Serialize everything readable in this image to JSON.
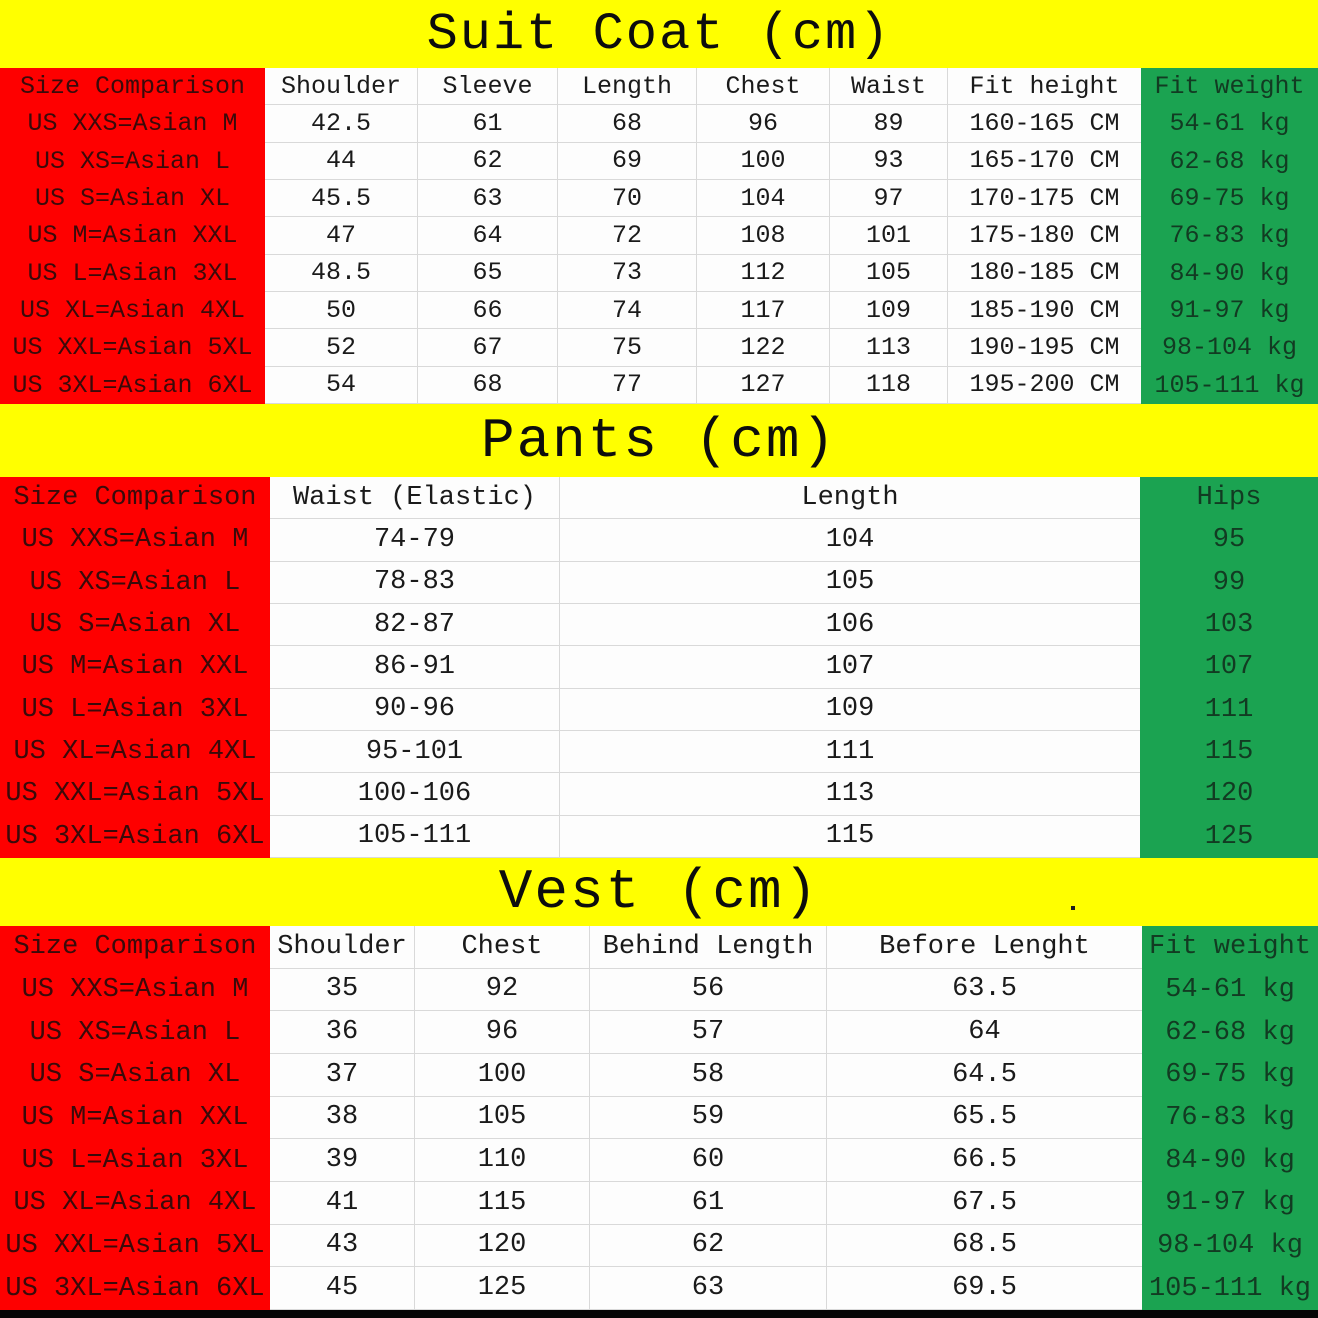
{
  "colors": {
    "banner": "#ffff00",
    "red": "#fe0000",
    "green": "#1ba351",
    "grid": "#d9d9d9",
    "cell_bg": "#fdfdfd",
    "footer": "#060606"
  },
  "tables": [
    {
      "title": "Suit Coat (cm)",
      "columns": [
        {
          "label": "Size Comparison",
          "type": "red"
        },
        {
          "label": "Shoulder",
          "type": "white"
        },
        {
          "label": "Sleeve",
          "type": "white"
        },
        {
          "label": "Length",
          "type": "white"
        },
        {
          "label": "Chest",
          "type": "white"
        },
        {
          "label": "Waist",
          "type": "white"
        },
        {
          "label": "Fit height",
          "type": "white"
        },
        {
          "label": "Fit weight",
          "type": "green"
        }
      ],
      "rows": [
        [
          "US XXS=Asian M",
          "42.5",
          "61",
          "68",
          "96",
          "89",
          "160-165 CM",
          "54-61 kg"
        ],
        [
          "US XS=Asian L",
          "44",
          "62",
          "69",
          "100",
          "93",
          "165-170 CM",
          "62-68 kg"
        ],
        [
          "US S=Asian XL",
          "45.5",
          "63",
          "70",
          "104",
          "97",
          "170-175 CM",
          "69-75 kg"
        ],
        [
          "US M=Asian XXL",
          "47",
          "64",
          "72",
          "108",
          "101",
          "175-180 CM",
          "76-83 kg"
        ],
        [
          "US L=Asian 3XL",
          "48.5",
          "65",
          "73",
          "112",
          "105",
          "180-185 CM",
          "84-90 kg"
        ],
        [
          "US XL=Asian 4XL",
          "50",
          "66",
          "74",
          "117",
          "109",
          "185-190 CM",
          "91-97 kg"
        ],
        [
          "US XXL=Asian 5XL",
          "52",
          "67",
          "75",
          "122",
          "113",
          "190-195 CM",
          "98-104 kg"
        ],
        [
          "US 3XL=Asian 6XL",
          "54",
          "68",
          "77",
          "127",
          "118",
          "195-200 CM",
          "105-111 kg"
        ]
      ]
    },
    {
      "title": "Pants (cm)",
      "columns": [
        {
          "label": "Size Comparison",
          "type": "red"
        },
        {
          "label": "Waist (Elastic)",
          "type": "white"
        },
        {
          "label": "Length",
          "type": "white"
        },
        {
          "label": "Hips",
          "type": "green"
        }
      ],
      "rows": [
        [
          "US XXS=Asian M",
          "74-79",
          "104",
          "95"
        ],
        [
          "US XS=Asian L",
          "78-83",
          "105",
          "99"
        ],
        [
          "US S=Asian XL",
          "82-87",
          "106",
          "103"
        ],
        [
          "US M=Asian XXL",
          "86-91",
          "107",
          "107"
        ],
        [
          "US L=Asian 3XL",
          "90-96",
          "109",
          "111"
        ],
        [
          "US XL=Asian 4XL",
          "95-101",
          "111",
          "115"
        ],
        [
          "US XXL=Asian 5XL",
          "100-106",
          "113",
          "120"
        ],
        [
          "US 3XL=Asian 6XL",
          "105-111",
          "115",
          "125"
        ]
      ]
    },
    {
      "title": "Vest (cm)",
      "columns": [
        {
          "label": "Size Comparison",
          "type": "red"
        },
        {
          "label": "Shoulder",
          "type": "white"
        },
        {
          "label": "Chest",
          "type": "white"
        },
        {
          "label": "Behind Length",
          "type": "white"
        },
        {
          "label": "Before Lenght",
          "type": "white"
        },
        {
          "label": "Fit weight",
          "type": "green"
        }
      ],
      "rows": [
        [
          "US XXS=Asian M",
          "35",
          "92",
          "56",
          "63.5",
          "54-61 kg"
        ],
        [
          "US XS=Asian L",
          "36",
          "96",
          "57",
          "64",
          "62-68 kg"
        ],
        [
          "US S=Asian XL",
          "37",
          "100",
          "58",
          "64.5",
          "69-75 kg"
        ],
        [
          "US M=Asian XXL",
          "38",
          "105",
          "59",
          "65.5",
          "76-83 kg"
        ],
        [
          "US L=Asian 3XL",
          "39",
          "110",
          "60",
          "66.5",
          "84-90 kg"
        ],
        [
          "US XL=Asian 4XL",
          "41",
          "115",
          "61",
          "67.5",
          "91-97 kg"
        ],
        [
          "US XXL=Asian 5XL",
          "43",
          "120",
          "62",
          "68.5",
          "98-104 kg"
        ],
        [
          "US 3XL=Asian 6XL",
          "45",
          "125",
          "63",
          "69.5",
          "105-111 kg"
        ]
      ]
    }
  ]
}
